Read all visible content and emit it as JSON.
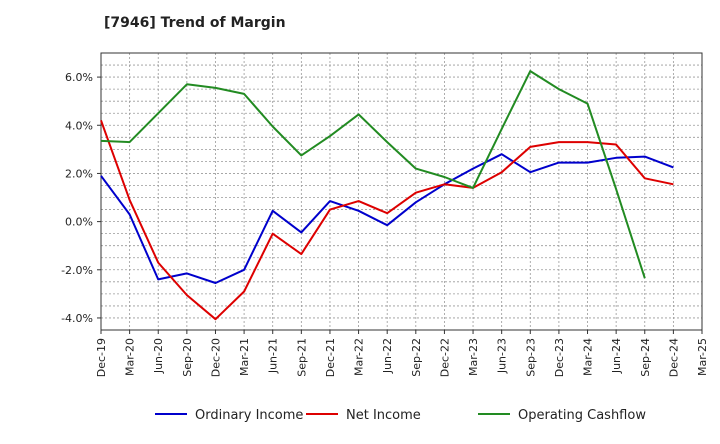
{
  "chart_data": {
    "type": "line",
    "title": "[7946]  Trend of Margin",
    "x": [
      "Dec-19",
      "Mar-20",
      "Jun-20",
      "Sep-20",
      "Dec-20",
      "Mar-21",
      "Jun-21",
      "Sep-21",
      "Dec-21",
      "Mar-22",
      "Jun-22",
      "Sep-22",
      "Dec-22",
      "Mar-23",
      "Jun-23",
      "Sep-23",
      "Dec-23",
      "Mar-24",
      "Jun-24",
      "Sep-24",
      "Dec-24",
      "Mar-25"
    ],
    "ylim": [
      -4.5,
      7.0
    ],
    "yticks": [
      -4.0,
      -2.0,
      0.0,
      2.0,
      4.0,
      6.0
    ],
    "ytick_labels": [
      "-4.0%",
      "-2.0%",
      "0.0%",
      "2.0%",
      "4.0%",
      "6.0%"
    ],
    "grid": true,
    "legend_position": "bottom",
    "series": [
      {
        "name": "Ordinary Income",
        "color": "#0000cc",
        "values": [
          1.9,
          0.3,
          -2.4,
          -2.15,
          -2.55,
          -2.0,
          0.45,
          -0.45,
          0.85,
          0.45,
          -0.15,
          0.8,
          1.55,
          2.2,
          2.8,
          2.05,
          2.45,
          2.45,
          2.65,
          2.7,
          2.25,
          null
        ]
      },
      {
        "name": "Net Income",
        "color": "#dd0000",
        "values": [
          4.2,
          0.9,
          -1.7,
          -3.05,
          -4.05,
          -2.9,
          -0.5,
          -1.35,
          0.5,
          0.85,
          0.35,
          1.2,
          1.55,
          1.4,
          2.05,
          3.1,
          3.3,
          3.3,
          3.2,
          1.8,
          1.55,
          null
        ]
      },
      {
        "name": "Operating Cashflow",
        "color": "#228B22",
        "values": [
          3.35,
          3.3,
          null,
          5.7,
          5.55,
          5.3,
          3.95,
          2.75,
          3.55,
          4.45,
          3.3,
          2.2,
          1.85,
          1.4,
          3.85,
          6.25,
          5.5,
          4.9,
          1.35,
          -2.35,
          null,
          null
        ]
      }
    ]
  }
}
